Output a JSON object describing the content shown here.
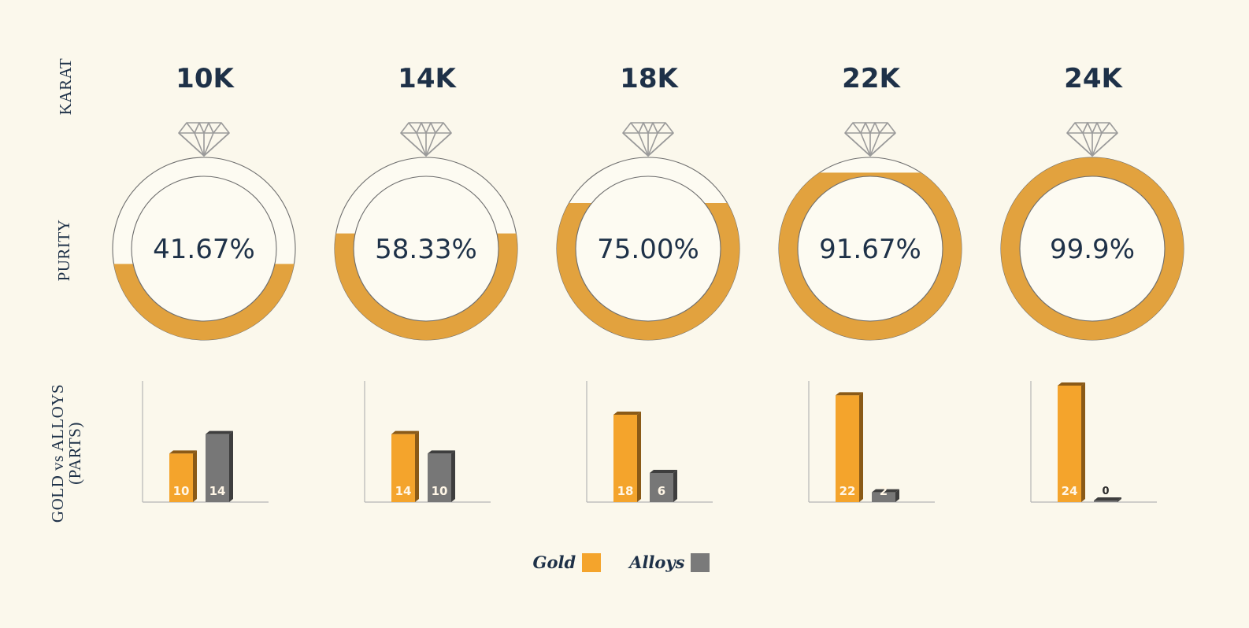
{
  "row_labels": {
    "karat": "KARAT",
    "purity": "PURITY",
    "parts_line1": "GOLD vs ALLOYS",
    "parts_line2": "(PARTS)"
  },
  "legend": {
    "gold": "Gold",
    "alloys": "Alloys"
  },
  "colors": {
    "gold": "#e2a23e",
    "gold_bar": "#f4a42c",
    "gold_bar_side": "#8a5a17",
    "alloys": "#777777",
    "alloys_side": "#3e3e3e",
    "text": "#1e3148",
    "background": "#fbf8ec"
  },
  "icons": {
    "diamond": "diamond-icon"
  },
  "chart_data": [
    {
      "type": "pie",
      "title": "10K",
      "purity_percent": 41.67,
      "purity_label": "41.67%",
      "categories": [
        "Gold",
        "Alloys"
      ],
      "parts": [
        10,
        14
      ]
    },
    {
      "type": "pie",
      "title": "14K",
      "purity_percent": 58.33,
      "purity_label": "58.33%",
      "categories": [
        "Gold",
        "Alloys"
      ],
      "parts": [
        14,
        10
      ]
    },
    {
      "type": "pie",
      "title": "18K",
      "purity_percent": 75.0,
      "purity_label": "75.00%",
      "categories": [
        "Gold",
        "Alloys"
      ],
      "parts": [
        18,
        6
      ]
    },
    {
      "type": "pie",
      "title": "22K",
      "purity_percent": 91.67,
      "purity_label": "91.67%",
      "categories": [
        "Gold",
        "Alloys"
      ],
      "parts": [
        22,
        2
      ]
    },
    {
      "type": "pie",
      "title": "24K",
      "purity_percent": 99.9,
      "purity_label": "99.9%",
      "categories": [
        "Gold",
        "Alloys"
      ],
      "parts": [
        24,
        0
      ]
    }
  ]
}
